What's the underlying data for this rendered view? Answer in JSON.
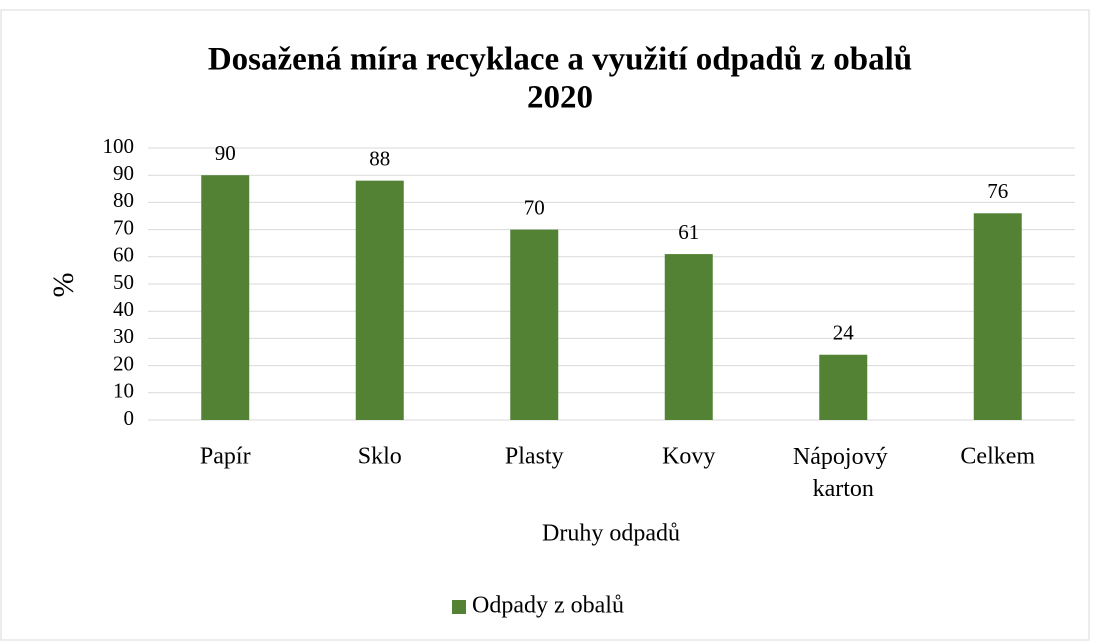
{
  "chart_data": {
    "type": "bar",
    "title": "Dosažená míra recyklace a využití odpadů z obalů",
    "subtitle": "2020",
    "x_label": "Druhy odpadů",
    "y_label": "%",
    "categories": [
      "Papír",
      "Sklo",
      "Plasty",
      "Kovy",
      "Nápojový karton",
      "Celkem"
    ],
    "series": [
      {
        "name": "Odpady z obalů",
        "color": "#548235",
        "values": [
          90,
          88,
          70,
          61,
          24,
          76
        ]
      }
    ],
    "ylim": [
      0,
      100
    ],
    "yticks": [
      0,
      10,
      20,
      30,
      40,
      50,
      60,
      70,
      80,
      90,
      100
    ],
    "grid": true,
    "legend": "bottom"
  }
}
